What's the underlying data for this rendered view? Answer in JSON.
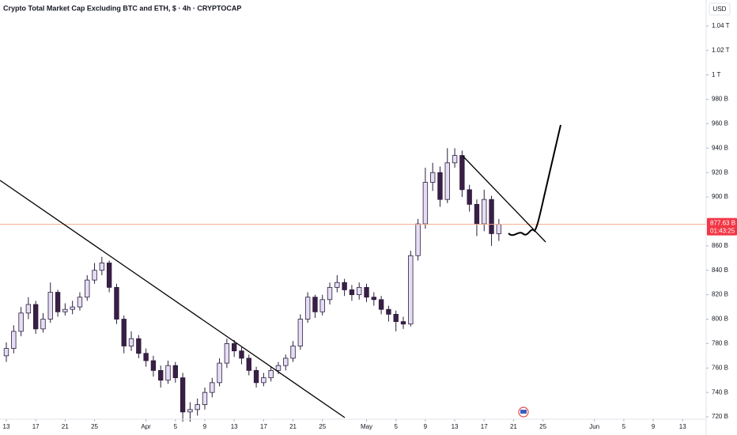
{
  "chart_data": {
    "type": "candlestick",
    "title": "Crypto Total Market Cap Excluding BTC and ETH, $ · 4h · CRYPTOCAP",
    "currency": "USD",
    "up_color": "#e6def5",
    "down_color": "#3a1e45",
    "wick_color": "#2b1d3d",
    "x": [
      12,
      13,
      14,
      15,
      16,
      17,
      18,
      19,
      20,
      21,
      22,
      23,
      24,
      25,
      26,
      27,
      28,
      29,
      30,
      31,
      32,
      33,
      34,
      35,
      36,
      37,
      38,
      39,
      40,
      41,
      42,
      43,
      44,
      45,
      46,
      47,
      48,
      49,
      50,
      51,
      52,
      53,
      54,
      55,
      56,
      57,
      58,
      59,
      60,
      61,
      62,
      63,
      64,
      65,
      66,
      67,
      68,
      69,
      70,
      71,
      72,
      73,
      74,
      75,
      76,
      77,
      78,
      79
    ],
    "open": [
      770,
      776,
      790,
      805,
      812,
      792,
      800,
      822,
      806,
      808,
      810,
      818,
      832,
      840,
      846,
      826,
      800,
      778,
      784,
      772,
      766,
      758,
      750,
      762,
      752,
      724,
      726,
      730,
      740,
      748,
      764,
      780,
      774,
      768,
      758,
      748,
      752,
      758,
      762,
      768,
      778,
      800,
      818,
      806,
      816,
      826,
      830,
      824,
      820,
      826,
      818,
      816,
      808,
      804,
      798,
      796,
      852,
      878,
      912,
      920,
      898,
      928,
      934,
      906,
      894,
      878,
      898,
      870
    ],
    "high": [
      781,
      795,
      810,
      818,
      815,
      805,
      830,
      824,
      813,
      815,
      822,
      836,
      846,
      851,
      848,
      829,
      803,
      790,
      787,
      776,
      770,
      762,
      766,
      765,
      756,
      732,
      735,
      744,
      752,
      768,
      784,
      783,
      777,
      771,
      761,
      756,
      761,
      765,
      771,
      782,
      804,
      822,
      820,
      820,
      830,
      836,
      833,
      828,
      830,
      829,
      822,
      819,
      811,
      807,
      802,
      856,
      882,
      924,
      928,
      925,
      940,
      940,
      938,
      910,
      898,
      906,
      901,
      882
    ],
    "low": [
      765,
      772,
      786,
      800,
      788,
      789,
      797,
      802,
      803,
      804,
      807,
      815,
      829,
      836,
      822,
      796,
      772,
      774,
      768,
      761,
      753,
      744,
      747,
      748,
      716,
      716,
      721,
      726,
      736,
      745,
      760,
      769,
      763,
      754,
      744,
      745,
      749,
      755,
      758,
      765,
      775,
      797,
      801,
      803,
      812,
      822,
      819,
      815,
      816,
      814,
      811,
      804,
      798,
      790,
      792,
      794,
      848,
      874,
      905,
      892,
      895,
      924,
      900,
      888,
      868,
      872,
      860,
      864
    ],
    "close": [
      776,
      790,
      805,
      812,
      792,
      800,
      822,
      806,
      808,
      810,
      818,
      832,
      840,
      846,
      826,
      800,
      778,
      784,
      772,
      766,
      758,
      750,
      762,
      752,
      724,
      726,
      730,
      740,
      748,
      764,
      780,
      774,
      768,
      758,
      748,
      752,
      758,
      762,
      768,
      778,
      800,
      818,
      806,
      816,
      826,
      830,
      824,
      820,
      826,
      818,
      816,
      808,
      804,
      798,
      796,
      852,
      878,
      912,
      920,
      898,
      928,
      934,
      906,
      894,
      878,
      898,
      870,
      877.63
    ],
    "xlim": [
      11.14,
      107.2
    ],
    "xticks": [
      {
        "value": 12,
        "label": "13"
      },
      {
        "value": 16,
        "label": "17"
      },
      {
        "value": 20,
        "label": "21"
      },
      {
        "value": 24,
        "label": "25"
      },
      {
        "value": 31,
        "label": "Apr"
      },
      {
        "value": 35,
        "label": "5"
      },
      {
        "value": 39,
        "label": "9"
      },
      {
        "value": 43,
        "label": "13"
      },
      {
        "value": 47,
        "label": "17"
      },
      {
        "value": 51,
        "label": "21"
      },
      {
        "value": 55,
        "label": "25"
      },
      {
        "value": 61,
        "label": "May"
      },
      {
        "value": 65,
        "label": "5"
      },
      {
        "value": 69,
        "label": "9"
      },
      {
        "value": 73,
        "label": "13"
      },
      {
        "value": 77,
        "label": "17"
      },
      {
        "value": 81,
        "label": "21"
      },
      {
        "value": 85,
        "label": "25"
      },
      {
        "value": 92,
        "label": "Jun"
      },
      {
        "value": 96,
        "label": "5"
      },
      {
        "value": 100,
        "label": "9"
      },
      {
        "value": 104,
        "label": "13"
      }
    ],
    "ylim": [
      718.1,
      1061.3
    ],
    "yticks": [
      {
        "value": 720,
        "label": "720 B"
      },
      {
        "value": 740,
        "label": "740 B"
      },
      {
        "value": 760,
        "label": "760 B"
      },
      {
        "value": 780,
        "label": "780 B"
      },
      {
        "value": 800,
        "label": "800 B"
      },
      {
        "value": 820,
        "label": "820 B"
      },
      {
        "value": 840,
        "label": "840 B"
      },
      {
        "value": 860,
        "label": "860 B"
      },
      {
        "value": 880,
        "label": "880 B"
      },
      {
        "value": 900,
        "label": "900 B"
      },
      {
        "value": 920,
        "label": "920 B"
      },
      {
        "value": 940,
        "label": "940 B"
      },
      {
        "value": 960,
        "label": "960 B"
      },
      {
        "value": 980,
        "label": "980 B"
      },
      {
        "value": 1000,
        "label": "1 T"
      },
      {
        "value": 1020,
        "label": "1.02 T"
      },
      {
        "value": 1040,
        "label": "1.04 T"
      }
    ],
    "last_price": {
      "value": 877.63,
      "label": "877.63 B"
    },
    "countdown": "01:43:25"
  }
}
